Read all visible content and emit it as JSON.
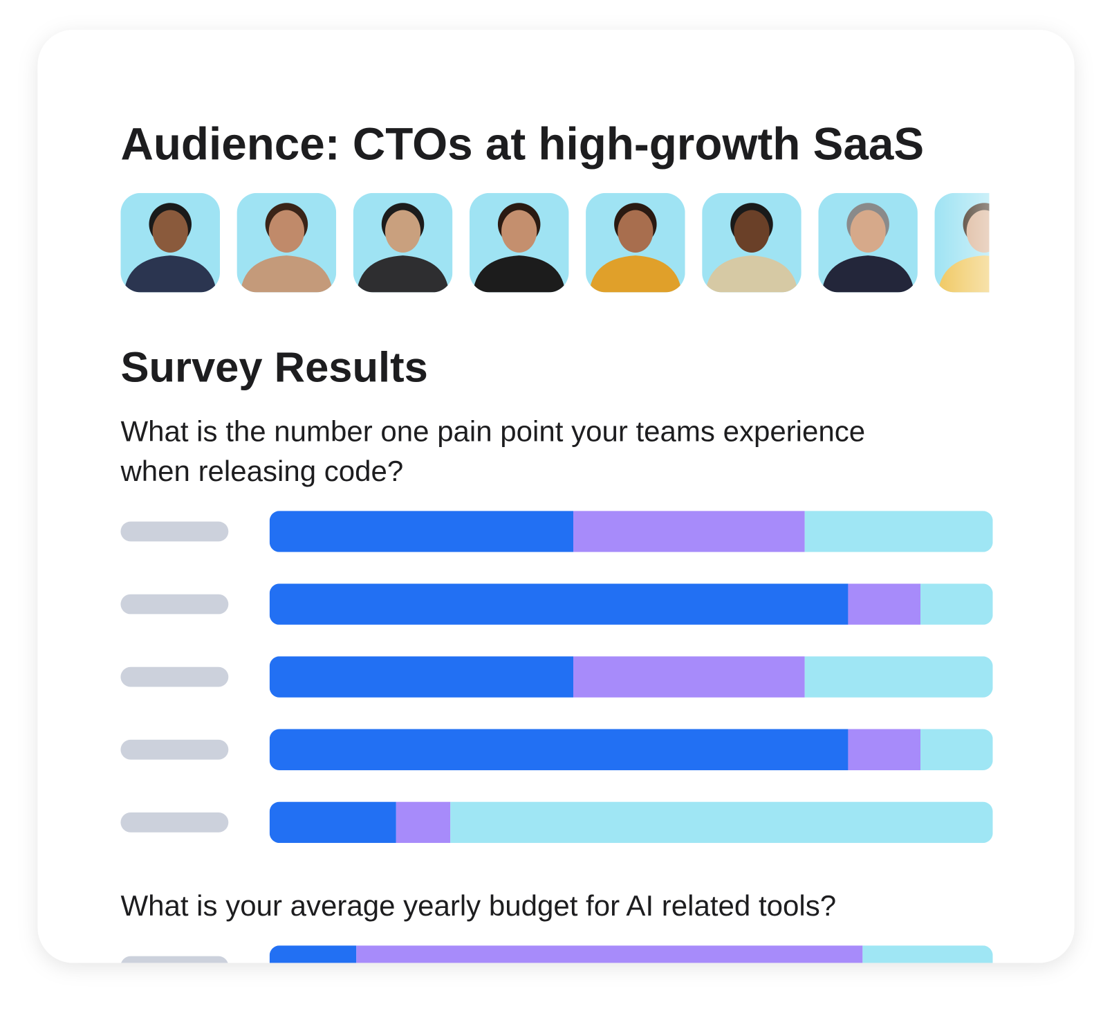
{
  "header": {
    "title": "Audience: CTOs at high-growth SaaS"
  },
  "survey": {
    "title": "Survey Results",
    "xlim": [
      0,
      100
    ],
    "colors": [
      "#2270f3",
      "#a78bfa",
      "#9fe6f4"
    ],
    "questions": [
      {
        "lines": [
          "What is the number one pain point your teams experience",
          "when releasing code?"
        ],
        "rows": [
          [
            42,
            32,
            26
          ],
          [
            80,
            10,
            10
          ],
          [
            42,
            32,
            26
          ],
          [
            80,
            10,
            10
          ],
          [
            17.5,
            7.5,
            75
          ]
        ]
      },
      {
        "lines": [
          "What is your average yearly budget for AI related tools?"
        ],
        "rows": [
          [
            12,
            70,
            18
          ]
        ]
      }
    ]
  }
}
